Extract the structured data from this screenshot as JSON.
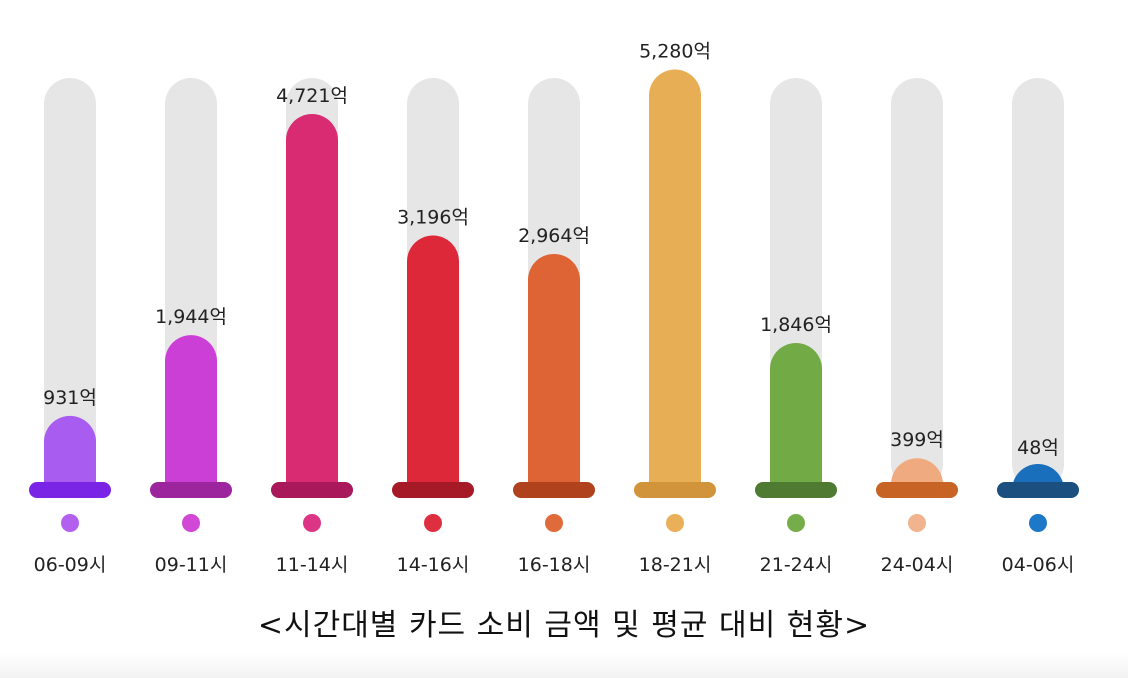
{
  "chart_data": {
    "type": "bar",
    "title": "<시간대별 카드 소비 금액 및 평균 대비 현황>",
    "categories": [
      "06-09시",
      "09-11시",
      "11-14시",
      "14-16시",
      "16-18시",
      "18-21시",
      "21-24시",
      "24-04시",
      "04-06시"
    ],
    "values": [
      931,
      1944,
      4721,
      3196,
      2964,
      5280,
      1846,
      399,
      48
    ],
    "value_labels": [
      "931억",
      "1,944억",
      "4,721억",
      "3,196억",
      "2,964억",
      "5,280억",
      "1,846억",
      "399억",
      "48억"
    ],
    "unit": "억",
    "ylim": [
      0,
      5600
    ],
    "grid": false,
    "colors": [
      "#a95cf0",
      "#cc3fd6",
      "#d92b72",
      "#dc2838",
      "#de6436",
      "#e8ae55",
      "#72aa46",
      "#f0aa80",
      "#1a6fbd"
    ],
    "base_colors": [
      "#7a25e6",
      "#9c259e",
      "#a8185a",
      "#a51a26",
      "#b0421e",
      "#d1943a",
      "#4f7a32",
      "#c86326",
      "#1a4f80"
    ],
    "dot_colors": [
      "#b460ee",
      "#d148d6",
      "#dc3585",
      "#dd2f40",
      "#df6a3a",
      "#e9b059",
      "#76ad4b",
      "#f2b48e",
      "#1e78c8"
    ],
    "track_color": "#e6e6e6"
  }
}
